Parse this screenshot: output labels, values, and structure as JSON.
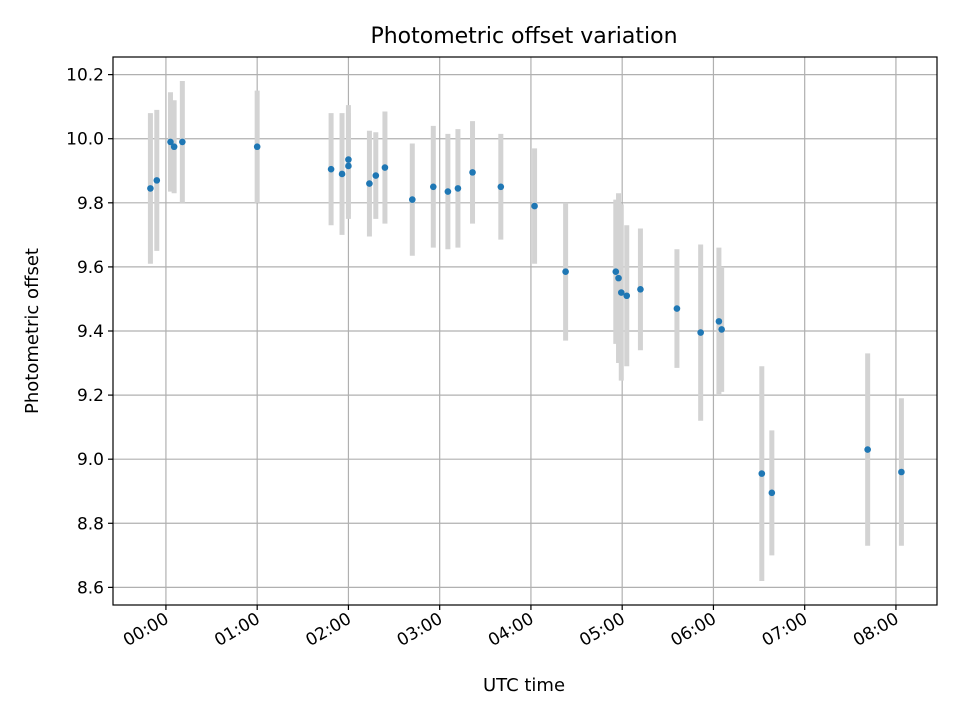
{
  "chart_data": {
    "type": "scatter",
    "title": "Photometric offset variation",
    "xlabel": "UTC time",
    "ylabel": "Photometric offset",
    "grid": true,
    "xlim_hours": [
      -0.58,
      8.45
    ],
    "ylim": [
      8.545,
      10.255
    ],
    "x_ticks": [
      {
        "value": 0,
        "label": "00:00"
      },
      {
        "value": 1,
        "label": "01:00"
      },
      {
        "value": 2,
        "label": "02:00"
      },
      {
        "value": 3,
        "label": "03:00"
      },
      {
        "value": 4,
        "label": "04:00"
      },
      {
        "value": 5,
        "label": "05:00"
      },
      {
        "value": 6,
        "label": "06:00"
      },
      {
        "value": 7,
        "label": "07:00"
      },
      {
        "value": 8,
        "label": "08:00"
      }
    ],
    "y_ticks": [
      {
        "value": 8.6,
        "label": "8.6"
      },
      {
        "value": 8.8,
        "label": "8.8"
      },
      {
        "value": 9.0,
        "label": "9.0"
      },
      {
        "value": 9.2,
        "label": "9.2"
      },
      {
        "value": 9.4,
        "label": "9.4"
      },
      {
        "value": 9.6,
        "label": "9.6"
      },
      {
        "value": 9.8,
        "label": "9.8"
      },
      {
        "value": 10.0,
        "label": "10.0"
      },
      {
        "value": 10.2,
        "label": "10.2"
      }
    ],
    "marker_color": "#1f77b4",
    "errorbar_color": "#d3d3d3",
    "points": [
      {
        "x": -0.17,
        "y": 9.845,
        "err": 0.235
      },
      {
        "x": -0.1,
        "y": 9.87,
        "err": 0.22
      },
      {
        "x": 0.05,
        "y": 9.99,
        "err": 0.155
      },
      {
        "x": 0.09,
        "y": 9.975,
        "err": 0.145
      },
      {
        "x": 0.18,
        "y": 9.99,
        "err": 0.19
      },
      {
        "x": 1.0,
        "y": 9.975,
        "err": 0.175
      },
      {
        "x": 1.81,
        "y": 9.905,
        "err": 0.175
      },
      {
        "x": 1.93,
        "y": 9.89,
        "err": 0.19
      },
      {
        "x": 2.0,
        "y": 9.935,
        "err": 0.17
      },
      {
        "x": 2.0,
        "y": 9.915,
        "err": 0.165
      },
      {
        "x": 2.23,
        "y": 9.86,
        "err": 0.165
      },
      {
        "x": 2.3,
        "y": 9.885,
        "err": 0.135
      },
      {
        "x": 2.4,
        "y": 9.91,
        "err": 0.175
      },
      {
        "x": 2.7,
        "y": 9.81,
        "err": 0.175
      },
      {
        "x": 2.93,
        "y": 9.85,
        "err": 0.19
      },
      {
        "x": 3.09,
        "y": 9.835,
        "err": 0.18
      },
      {
        "x": 3.2,
        "y": 9.845,
        "err": 0.185
      },
      {
        "x": 3.36,
        "y": 9.895,
        "err": 0.16
      },
      {
        "x": 3.67,
        "y": 9.85,
        "err": 0.165
      },
      {
        "x": 4.04,
        "y": 9.79,
        "err": 0.18
      },
      {
        "x": 4.38,
        "y": 9.585,
        "err": 0.215
      },
      {
        "x": 4.93,
        "y": 9.585,
        "err": 0.225
      },
      {
        "x": 4.96,
        "y": 9.565,
        "err": 0.265
      },
      {
        "x": 4.99,
        "y": 9.52,
        "err": 0.275
      },
      {
        "x": 5.05,
        "y": 9.51,
        "err": 0.22
      },
      {
        "x": 5.2,
        "y": 9.53,
        "err": 0.19
      },
      {
        "x": 5.6,
        "y": 9.47,
        "err": 0.185
      },
      {
        "x": 5.86,
        "y": 9.395,
        "err": 0.275
      },
      {
        "x": 6.06,
        "y": 9.43,
        "err": 0.23
      },
      {
        "x": 6.09,
        "y": 9.405,
        "err": 0.195
      },
      {
        "x": 6.53,
        "y": 8.955,
        "err": 0.335
      },
      {
        "x": 6.64,
        "y": 8.895,
        "err": 0.195
      },
      {
        "x": 7.69,
        "y": 9.03,
        "err": 0.3
      },
      {
        "x": 8.06,
        "y": 8.96,
        "err": 0.23
      }
    ]
  }
}
